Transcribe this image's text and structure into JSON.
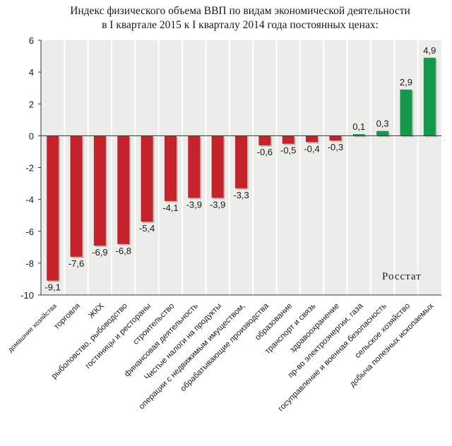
{
  "title_line1": "Индекс физического объема ВВП по видам экономической деятельности",
  "title_line2": "в I квартале 2015 к I кварталу 2014 года постоянных ценах:",
  "source": "Росстат",
  "chart_data": {
    "type": "bar",
    "title": "Индекс физического объема ВВП по видам экономической деятельности в I квартале 2015 к I кварталу 2014 года постоянных ценах:",
    "categories": [
      "домашние хозяйства",
      "торговля",
      "ЖКХ",
      "рыболовство, рыбоводство",
      "гостиницы и рестораны",
      "строительство",
      "финансовая деятельность",
      "Чистые налоги на продукты",
      "операции с недвижимым имуществом,",
      "обрабатывающие производства",
      "образование",
      "транспорт и связь",
      "здравоохранение",
      "пр-во электроэнергии, газа",
      "госуправление и военная безопасность",
      "сельское хозяйство",
      "добыча полезных ископаемых"
    ],
    "values": [
      -9.1,
      -7.6,
      -6.9,
      -6.8,
      -5.4,
      -4.1,
      -3.9,
      -3.9,
      -3.3,
      -0.6,
      -0.5,
      -0.4,
      -0.3,
      0.1,
      0.3,
      2.9,
      4.9
    ],
    "value_labels": [
      "-9,1",
      "-7,6",
      "-6,9",
      "-6,8",
      "-5,4",
      "-4,1",
      "-3,9",
      "-3,9",
      "-3,3",
      "-0,6",
      "-0,5",
      "-0,4",
      "-0,3",
      "0,1",
      "0,3",
      "2,9",
      "4,9"
    ],
    "y_ticks": [
      "6",
      "4",
      "2",
      "0",
      "-2",
      "-4",
      "-6",
      "-8",
      "-10"
    ],
    "ylim": [
      -10,
      6
    ],
    "grid": "vertical category separators",
    "colors": {
      "negative": "#c4232b",
      "positive": "#13994a",
      "plot_background": "#ececea",
      "separator": "#ffffff",
      "axis": "#333333"
    }
  }
}
